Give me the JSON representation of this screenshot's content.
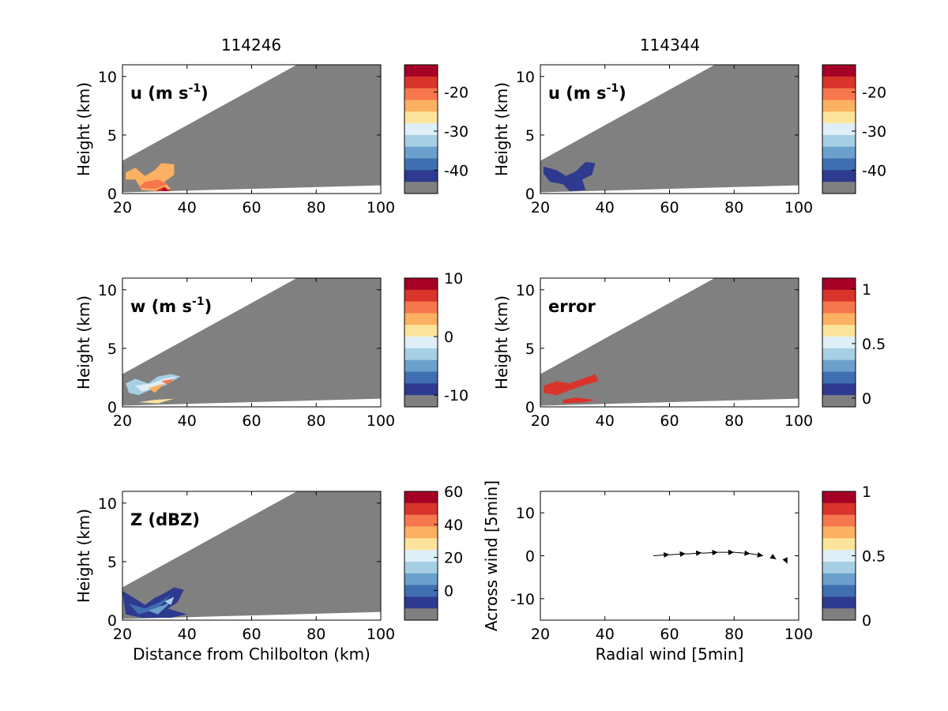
{
  "colors": {
    "scale": [
      "#808080",
      "#2e3a8f",
      "#3f6fb0",
      "#6aa0cb",
      "#a6cfe3",
      "#dfeff7",
      "#fde49c",
      "#fcb061",
      "#f6764e",
      "#d9342b",
      "#a50026"
    ],
    "masked": "#808080",
    "background": "#ffffff"
  },
  "column_titles": [
    "114246",
    "114344"
  ],
  "chart_data": [
    {
      "type": "heatmap",
      "panel": "u-114246",
      "label_main": "u (m s",
      "label_sup": "-1",
      "label_close": ")",
      "xlabel": "",
      "ylabel": "Height (km)",
      "x_ticks": [
        "20",
        "40",
        "60",
        "80",
        "100"
      ],
      "y_ticks": [
        "0",
        "5",
        "10"
      ],
      "xlim": [
        20,
        100
      ],
      "ylim": [
        0,
        11
      ],
      "colorbar": {
        "ticks": [
          "-20",
          "-30",
          "-40"
        ],
        "tick_values": [
          -20,
          -30,
          -40
        ],
        "range": [
          -46,
          -13
        ]
      },
      "blob_colors": [
        7,
        8,
        9,
        10
      ]
    },
    {
      "type": "heatmap",
      "panel": "u-114344",
      "label_main": "u (m s",
      "label_sup": "-1",
      "label_close": ")",
      "xlabel": "",
      "ylabel": "Height (km)",
      "x_ticks": [
        "20",
        "40",
        "60",
        "80",
        "100"
      ],
      "y_ticks": [
        "0",
        "5",
        "10"
      ],
      "xlim": [
        20,
        100
      ],
      "ylim": [
        0,
        11
      ],
      "colorbar": {
        "ticks": [
          "-20",
          "-30",
          "-40"
        ],
        "tick_values": [
          -20,
          -30,
          -40
        ],
        "range": [
          -46,
          -13
        ]
      },
      "blob_colors": [
        1
      ]
    },
    {
      "type": "heatmap",
      "panel": "w-114246",
      "label_main": "w (m s",
      "label_sup": "-1",
      "label_close": ")",
      "xlabel": "",
      "ylabel": "Height (km)",
      "x_ticks": [
        "20",
        "40",
        "60",
        "80",
        "100"
      ],
      "y_ticks": [
        "0",
        "5",
        "10"
      ],
      "xlim": [
        20,
        100
      ],
      "ylim": [
        0,
        11
      ],
      "colorbar": {
        "ticks": [
          "10",
          "0",
          "-10"
        ],
        "tick_values": [
          10,
          0,
          -10
        ],
        "range": [
          -12,
          10
        ]
      },
      "blob_colors": [
        4,
        5,
        6,
        7,
        8
      ]
    },
    {
      "type": "heatmap",
      "panel": "error-114344",
      "label_main": "error",
      "label_sup": "",
      "label_close": "",
      "xlabel": "",
      "ylabel": "Height (km)",
      "x_ticks": [
        "20",
        "40",
        "60",
        "80",
        "100"
      ],
      "y_ticks": [
        "0",
        "5",
        "10"
      ],
      "xlim": [
        20,
        100
      ],
      "ylim": [
        0,
        11
      ],
      "colorbar": {
        "ticks": [
          "1",
          "0.5",
          "0"
        ],
        "tick_values": [
          1,
          0.5,
          0
        ],
        "range": [
          -0.08,
          1.1
        ]
      },
      "blob_colors": [
        9
      ]
    },
    {
      "type": "heatmap",
      "panel": "Z-114246",
      "label_main": "Z (dBZ)",
      "label_sup": "",
      "label_close": "",
      "xlabel": "Distance from Chilbolton (km)",
      "ylabel": "Height (km)",
      "x_ticks": [
        "20",
        "40",
        "60",
        "80",
        "100"
      ],
      "y_ticks": [
        "0",
        "5",
        "10"
      ],
      "xlim": [
        20,
        100
      ],
      "ylim": [
        0,
        11
      ],
      "colorbar": {
        "ticks": [
          "60",
          "40",
          "20",
          "0"
        ],
        "tick_values": [
          60,
          40,
          20,
          0
        ],
        "range": [
          -18,
          60
        ]
      },
      "blob_colors": [
        1,
        2,
        3,
        4
      ]
    },
    {
      "type": "quiver",
      "panel": "wind-114344",
      "xlabel": "Radial wind [5min]",
      "ylabel": "Across wind [5min]",
      "x_ticks": [
        "20",
        "40",
        "60",
        "80",
        "100"
      ],
      "y_ticks": [
        "10",
        "0",
        "-10"
      ],
      "xlim": [
        20,
        100
      ],
      "ylim": [
        -15,
        15
      ],
      "colorbar": {
        "ticks": [
          "1",
          "0.5",
          "0"
        ],
        "tick_values": [
          1,
          0.5,
          0
        ],
        "range": [
          0,
          1
        ]
      },
      "vectors": [
        {
          "x": 55,
          "y": 0,
          "u": 5,
          "v": 0.3
        },
        {
          "x": 60,
          "y": 0.2,
          "u": 5,
          "v": 0.3
        },
        {
          "x": 65,
          "y": 0.4,
          "u": 5,
          "v": 0.3
        },
        {
          "x": 70,
          "y": 0.6,
          "u": 5,
          "v": 0.2
        },
        {
          "x": 75,
          "y": 0.8,
          "u": 5,
          "v": 0.0
        },
        {
          "x": 80,
          "y": 0.8,
          "u": 5,
          "v": -0.3
        },
        {
          "x": 85,
          "y": 0.5,
          "u": 4,
          "v": -0.5
        },
        {
          "x": 92,
          "y": -0.3,
          "u": 1,
          "v": -0.5
        },
        {
          "x": 96,
          "y": -1.0,
          "u": 0.5,
          "v": -0.8
        }
      ]
    }
  ]
}
